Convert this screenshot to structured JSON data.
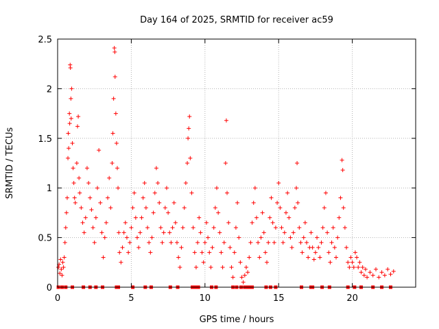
{
  "chart_data": {
    "type": "scatter",
    "title": "Day 164 of 2025, SRMTID for receiver ac59",
    "xlabel": "GPS time / hours",
    "ylabel": "SRMTID / TECUs",
    "xlim": [
      0,
      24.3
    ],
    "ylim": [
      0,
      2.5
    ],
    "xticks": [
      0,
      5,
      10,
      15,
      20
    ],
    "xtick_labels": [
      "0",
      "5",
      "10",
      "15",
      "20"
    ],
    "yticks": [
      0,
      0.5,
      1,
      1.5,
      2,
      2.5
    ],
    "ytick_labels": [
      "0",
      "0.5",
      "1",
      "1.5",
      "2",
      "2.5"
    ],
    "grid": true,
    "marker_color": "#ff0000",
    "series": [
      {
        "name": "SRMTID",
        "marker": "plus",
        "points": [
          [
            0.05,
            0.2
          ],
          [
            0.1,
            0.23
          ],
          [
            0.15,
            0.14
          ],
          [
            0.2,
            0.28
          ],
          [
            0.25,
            0.18
          ],
          [
            0.3,
            0.12
          ],
          [
            0.35,
            0.25
          ],
          [
            0.4,
            0.2
          ],
          [
            0.45,
            0.3
          ],
          [
            0.5,
            0.45
          ],
          [
            0.55,
            0.6
          ],
          [
            0.6,
            0.75
          ],
          [
            0.65,
            0.9
          ],
          [
            0.7,
            1.3
          ],
          [
            0.72,
            1.55
          ],
          [
            0.75,
            1.4
          ],
          [
            0.8,
            1.75
          ],
          [
            0.82,
            1.65
          ],
          [
            0.85,
            2.24
          ],
          [
            0.87,
            2.21
          ],
          [
            0.9,
            1.9
          ],
          [
            0.92,
            1.7
          ],
          [
            0.95,
            2.0
          ],
          [
            1.0,
            1.45
          ],
          [
            1.05,
            1.2
          ],
          [
            1.1,
            1.05
          ],
          [
            1.15,
            0.9
          ],
          [
            1.2,
            0.85
          ],
          [
            1.3,
            1.25
          ],
          [
            1.35,
            1.62
          ],
          [
            1.4,
            1.72
          ],
          [
            1.45,
            1.1
          ],
          [
            1.5,
            0.95
          ],
          [
            1.6,
            0.8
          ],
          [
            1.7,
            0.65
          ],
          [
            1.8,
            0.55
          ],
          [
            1.9,
            0.7
          ],
          [
            2.0,
            1.2
          ],
          [
            2.1,
            1.05
          ],
          [
            2.2,
            0.9
          ],
          [
            2.3,
            0.78
          ],
          [
            2.4,
            0.6
          ],
          [
            2.5,
            0.45
          ],
          [
            2.6,
            0.7
          ],
          [
            2.7,
            1.0
          ],
          [
            2.8,
            1.38
          ],
          [
            2.9,
            0.85
          ],
          [
            3.0,
            0.55
          ],
          [
            3.1,
            0.3
          ],
          [
            3.2,
            0.5
          ],
          [
            3.3,
            0.65
          ],
          [
            3.4,
            0.9
          ],
          [
            3.5,
            1.1
          ],
          [
            3.6,
            0.8
          ],
          [
            3.7,
            1.25
          ],
          [
            3.75,
            1.55
          ],
          [
            3.8,
            1.9
          ],
          [
            3.85,
            2.41
          ],
          [
            3.88,
            2.37
          ],
          [
            3.9,
            2.12
          ],
          [
            3.95,
            1.75
          ],
          [
            4.0,
            1.45
          ],
          [
            4.05,
            1.2
          ],
          [
            4.1,
            1.0
          ],
          [
            4.15,
            0.55
          ],
          [
            4.2,
            0.35
          ],
          [
            4.3,
            0.25
          ],
          [
            4.4,
            0.4
          ],
          [
            4.5,
            0.55
          ],
          [
            4.6,
            0.65
          ],
          [
            4.7,
            0.5
          ],
          [
            4.8,
            0.35
          ],
          [
            4.9,
            0.45
          ],
          [
            5.0,
            0.6
          ],
          [
            5.1,
            0.8
          ],
          [
            5.2,
            0.95
          ],
          [
            5.3,
            0.7
          ],
          [
            5.4,
            0.5
          ],
          [
            5.5,
            0.4
          ],
          [
            5.6,
            0.55
          ],
          [
            5.7,
            0.7
          ],
          [
            5.8,
            0.9
          ],
          [
            5.9,
            1.05
          ],
          [
            6.0,
            0.8
          ],
          [
            6.1,
            0.6
          ],
          [
            6.2,
            0.45
          ],
          [
            6.3,
            0.35
          ],
          [
            6.4,
            0.5
          ],
          [
            6.5,
            0.75
          ],
          [
            6.6,
            0.95
          ],
          [
            6.7,
            1.2
          ],
          [
            6.8,
            1.05
          ],
          [
            6.9,
            0.85
          ],
          [
            7.0,
            0.6
          ],
          [
            7.1,
            0.45
          ],
          [
            7.2,
            0.55
          ],
          [
            7.3,
            0.8
          ],
          [
            7.4,
            1.0
          ],
          [
            7.5,
            0.75
          ],
          [
            7.6,
            0.55
          ],
          [
            7.7,
            0.45
          ],
          [
            7.8,
            0.6
          ],
          [
            7.9,
            0.85
          ],
          [
            8.0,
            0.65
          ],
          [
            8.1,
            0.45
          ],
          [
            8.2,
            0.3
          ],
          [
            8.3,
            0.2
          ],
          [
            8.4,
            0.4
          ],
          [
            8.5,
            0.6
          ],
          [
            8.6,
            0.8
          ],
          [
            8.7,
            1.05
          ],
          [
            8.8,
            1.25
          ],
          [
            8.85,
            1.5
          ],
          [
            8.9,
            1.6
          ],
          [
            8.95,
            1.72
          ],
          [
            9.0,
            1.3
          ],
          [
            9.1,
            0.95
          ],
          [
            9.2,
            0.6
          ],
          [
            9.3,
            0.35
          ],
          [
            9.4,
            0.2
          ],
          [
            9.5,
            0.45
          ],
          [
            9.6,
            0.7
          ],
          [
            9.7,
            0.55
          ],
          [
            9.8,
            0.35
          ],
          [
            9.9,
            0.25
          ],
          [
            10.0,
            0.45
          ],
          [
            10.1,
            0.65
          ],
          [
            10.2,
            0.5
          ],
          [
            10.3,
            0.35
          ],
          [
            10.4,
            0.2
          ],
          [
            10.5,
            0.4
          ],
          [
            10.6,
            0.6
          ],
          [
            10.7,
            0.8
          ],
          [
            10.8,
            1.0
          ],
          [
            10.9,
            0.75
          ],
          [
            11.0,
            0.55
          ],
          [
            11.1,
            0.35
          ],
          [
            11.2,
            0.2
          ],
          [
            11.3,
            0.45
          ],
          [
            11.4,
            1.25
          ],
          [
            11.45,
            1.68
          ],
          [
            11.5,
            0.95
          ],
          [
            11.6,
            0.65
          ],
          [
            11.7,
            0.4
          ],
          [
            11.8,
            0.2
          ],
          [
            11.9,
            0.1
          ],
          [
            12.0,
            0.35
          ],
          [
            12.1,
            0.6
          ],
          [
            12.2,
            0.85
          ],
          [
            12.3,
            0.5
          ],
          [
            12.4,
            0.25
          ],
          [
            12.5,
            0.1
          ],
          [
            12.6,
            0.05
          ],
          [
            12.7,
            0.12
          ],
          [
            12.8,
            0.2
          ],
          [
            12.9,
            0.15
          ],
          [
            13.0,
            0.3
          ],
          [
            13.1,
            0.45
          ],
          [
            13.2,
            0.65
          ],
          [
            13.3,
            0.85
          ],
          [
            13.4,
            1.0
          ],
          [
            13.5,
            0.7
          ],
          [
            13.6,
            0.45
          ],
          [
            13.7,
            0.3
          ],
          [
            13.8,
            0.5
          ],
          [
            13.9,
            0.75
          ],
          [
            14.0,
            0.55
          ],
          [
            14.1,
            0.35
          ],
          [
            14.2,
            0.25
          ],
          [
            14.3,
            0.45
          ],
          [
            14.4,
            0.7
          ],
          [
            14.5,
            0.9
          ],
          [
            14.6,
            0.65
          ],
          [
            14.7,
            0.45
          ],
          [
            14.8,
            0.6
          ],
          [
            14.9,
            0.85
          ],
          [
            15.0,
            1.05
          ],
          [
            15.1,
            0.8
          ],
          [
            15.2,
            0.6
          ],
          [
            15.3,
            0.45
          ],
          [
            15.4,
            0.55
          ],
          [
            15.5,
            0.75
          ],
          [
            15.6,
            0.95
          ],
          [
            15.7,
            0.7
          ],
          [
            15.8,
            0.5
          ],
          [
            15.9,
            0.4
          ],
          [
            16.0,
            0.55
          ],
          [
            16.1,
            0.8
          ],
          [
            16.2,
            1.0
          ],
          [
            16.25,
            1.25
          ],
          [
            16.3,
            0.85
          ],
          [
            16.4,
            0.6
          ],
          [
            16.5,
            0.45
          ],
          [
            16.6,
            0.35
          ],
          [
            16.7,
            0.5
          ],
          [
            16.8,
            0.65
          ],
          [
            16.9,
            0.45
          ],
          [
            17.0,
            0.3
          ],
          [
            17.1,
            0.4
          ],
          [
            17.2,
            0.55
          ],
          [
            17.3,
            0.4
          ],
          [
            17.4,
            0.28
          ],
          [
            17.5,
            0.35
          ],
          [
            17.6,
            0.5
          ],
          [
            17.7,
            0.4
          ],
          [
            17.8,
            0.3
          ],
          [
            17.9,
            0.45
          ],
          [
            18.0,
            0.6
          ],
          [
            18.1,
            0.8
          ],
          [
            18.2,
            0.95
          ],
          [
            18.3,
            0.55
          ],
          [
            18.4,
            0.35
          ],
          [
            18.5,
            0.25
          ],
          [
            18.6,
            0.45
          ],
          [
            18.7,
            0.6
          ],
          [
            18.8,
            0.4
          ],
          [
            18.9,
            0.3
          ],
          [
            19.0,
            0.5
          ],
          [
            19.1,
            0.7
          ],
          [
            19.2,
            0.9
          ],
          [
            19.3,
            1.28
          ],
          [
            19.35,
            1.18
          ],
          [
            19.4,
            0.8
          ],
          [
            19.5,
            0.6
          ],
          [
            19.6,
            0.4
          ],
          [
            19.7,
            0.25
          ],
          [
            19.8,
            0.2
          ],
          [
            19.9,
            0.3
          ],
          [
            20.0,
            0.25
          ],
          [
            20.1,
            0.2
          ],
          [
            20.2,
            0.35
          ],
          [
            20.3,
            0.3
          ],
          [
            20.4,
            0.2
          ],
          [
            20.5,
            0.25
          ],
          [
            20.6,
            0.15
          ],
          [
            20.7,
            0.2
          ],
          [
            20.8,
            0.12
          ],
          [
            20.9,
            0.18
          ],
          [
            21.0,
            0.1
          ],
          [
            21.2,
            0.15
          ],
          [
            21.4,
            0.12
          ],
          [
            21.6,
            0.18
          ],
          [
            21.8,
            0.1
          ],
          [
            22.0,
            0.15
          ],
          [
            22.2,
            0.12
          ],
          [
            22.4,
            0.18
          ],
          [
            22.6,
            0.13
          ],
          [
            22.8,
            0.16
          ]
        ]
      }
    ],
    "baseline_gaps_hours": [
      0.05,
      0.3,
      0.55,
      1.0,
      1.75,
      2.2,
      2.6,
      3.05,
      4.0,
      4.12,
      5.1,
      5.95,
      6.35,
      7.65,
      8.15,
      9.15,
      9.35,
      9.55,
      10.45,
      10.75,
      11.9,
      12.15,
      12.45,
      12.7,
      12.9,
      13.0,
      13.1,
      13.2,
      14.15,
      14.45,
      14.8,
      16.55,
      17.2,
      17.3,
      17.95,
      18.45,
      19.7,
      20.15,
      20.6,
      21.4,
      22.0,
      22.6
    ]
  }
}
